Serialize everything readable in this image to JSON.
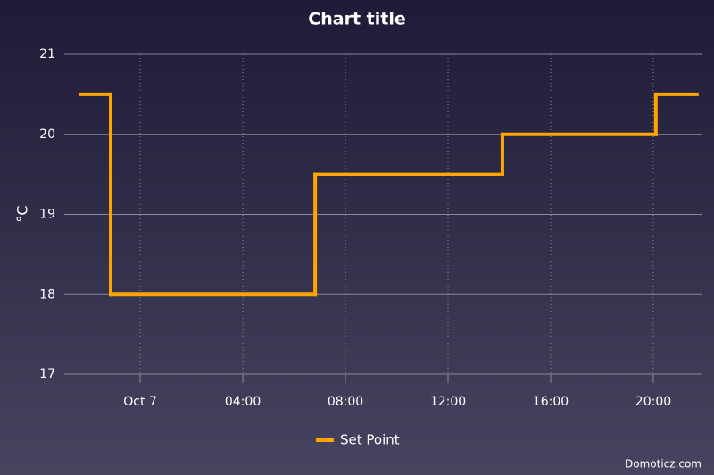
{
  "chart_data": {
    "type": "line",
    "step": "after",
    "title": "Chart title",
    "y_label": "°C",
    "x": [
      -2.33,
      -1.15,
      6.82,
      14.12,
      20.1,
      21.7
    ],
    "series": [
      {
        "name": "Set Point",
        "color": "#ffa500",
        "values": [
          20.5,
          18,
          19.5,
          20,
          20.5,
          20.5
        ]
      }
    ],
    "xlim": [
      -2.96,
      21.88
    ],
    "xticks": [
      {
        "value": 0,
        "label": "Oct 7"
      },
      {
        "value": 4,
        "label": "04:00"
      },
      {
        "value": 8,
        "label": "08:00"
      },
      {
        "value": 12,
        "label": "12:00"
      },
      {
        "value": 16,
        "label": "16:00"
      },
      {
        "value": 20,
        "label": "20:00"
      }
    ],
    "ylim": [
      17,
      21
    ],
    "yticks": [
      17,
      18,
      19,
      20,
      21
    ],
    "grid": true,
    "legend": "bottom",
    "credits": "Domoticz.com"
  }
}
